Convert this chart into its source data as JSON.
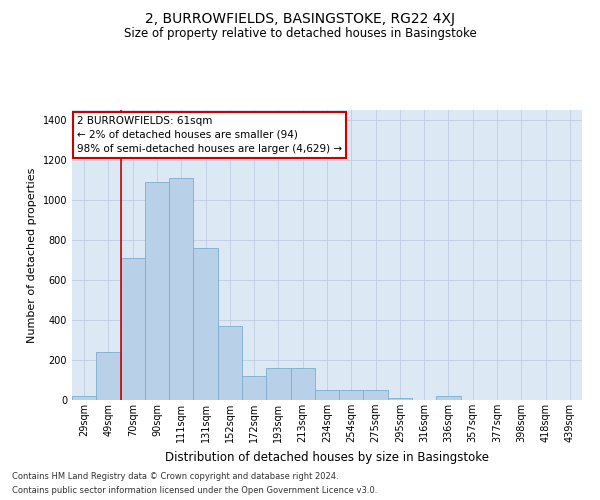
{
  "title": "2, BURROWFIELDS, BASINGSTOKE, RG22 4XJ",
  "subtitle": "Size of property relative to detached houses in Basingstoke",
  "xlabel": "Distribution of detached houses by size in Basingstoke",
  "ylabel": "Number of detached properties",
  "footnote1": "Contains HM Land Registry data © Crown copyright and database right 2024.",
  "footnote2": "Contains public sector information licensed under the Open Government Licence v3.0.",
  "annotation_title": "2 BURROWFIELDS: 61sqm",
  "annotation_line2": "← 2% of detached houses are smaller (94)",
  "annotation_line3": "98% of semi-detached houses are larger (4,629) →",
  "bar_color": "#b8d0e8",
  "bar_edge_color": "#7aaed0",
  "vline_color": "#cc0000",
  "vline_x_idx": 1,
  "annotation_box_facecolor": "#ffffff",
  "annotation_box_edgecolor": "#cc0000",
  "bg_color": "#dde8f5",
  "grid_color": "#c0cce0",
  "categories": [
    "29sqm",
    "49sqm",
    "70sqm",
    "90sqm",
    "111sqm",
    "131sqm",
    "152sqm",
    "172sqm",
    "193sqm",
    "213sqm",
    "234sqm",
    "254sqm",
    "275sqm",
    "295sqm",
    "316sqm",
    "336sqm",
    "357sqm",
    "377sqm",
    "398sqm",
    "418sqm",
    "439sqm"
  ],
  "values": [
    20,
    240,
    710,
    1090,
    1110,
    760,
    370,
    120,
    160,
    160,
    50,
    50,
    50,
    10,
    0,
    20,
    0,
    0,
    0,
    0,
    0
  ],
  "ylim": [
    0,
    1450
  ],
  "yticks": [
    0,
    200,
    400,
    600,
    800,
    1000,
    1200,
    1400
  ],
  "title_fontsize": 10,
  "subtitle_fontsize": 8.5,
  "ylabel_fontsize": 8,
  "xlabel_fontsize": 8.5,
  "tick_fontsize": 7,
  "annotation_fontsize": 7.5,
  "footnote_fontsize": 6
}
